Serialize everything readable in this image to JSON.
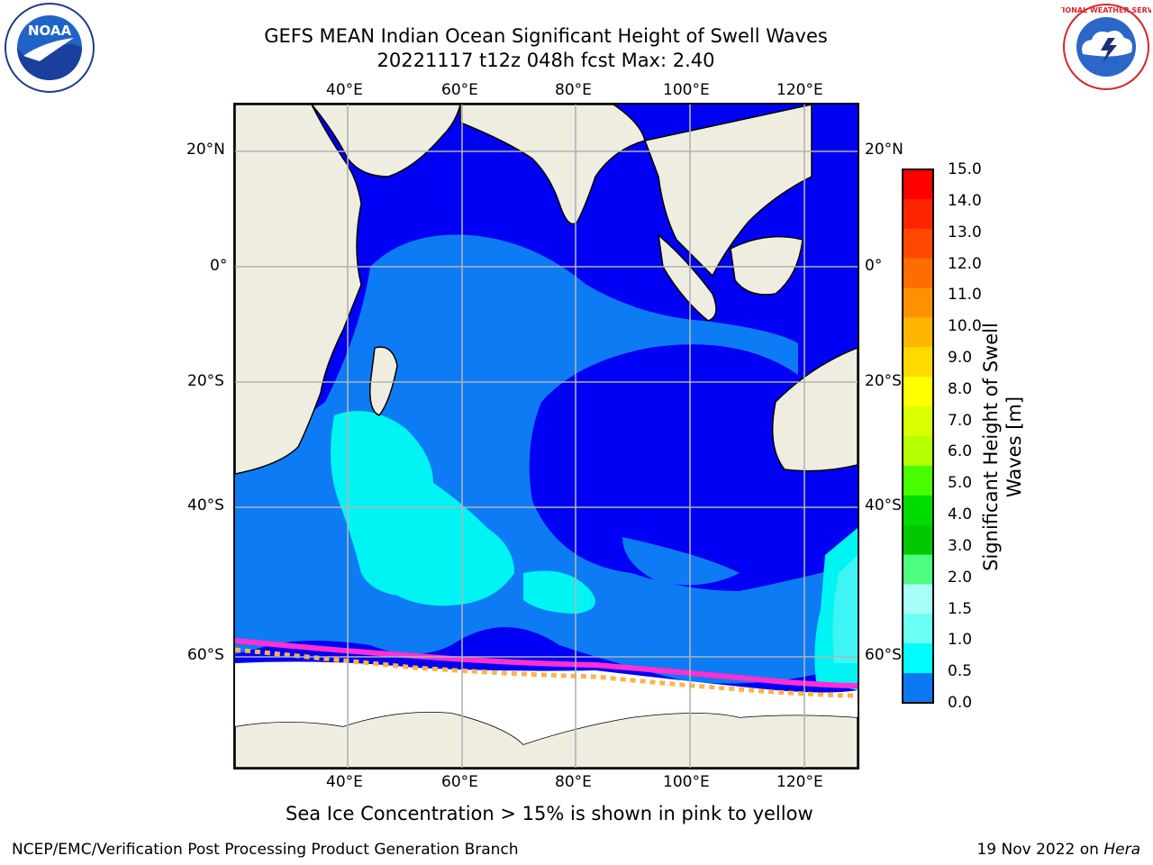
{
  "header": {
    "title_line1": "GEFS MEAN Indian Ocean Significant Height of Swell Waves",
    "title_line2": "20221117 t12z 048h fcst   Max: 2.40"
  },
  "logos": {
    "left_text": "NOAA",
    "left_ring": "NATIONAL OCEANIC AND ATMOSPHERIC ADMINISTRATION · U.S. DEPARTMENT OF COMMERCE",
    "right_ring": "NATIONAL WEATHER SERVICE"
  },
  "map": {
    "lon_labels": [
      "40°E",
      "60°E",
      "80°E",
      "100°E",
      "120°E"
    ],
    "lat_labels": [
      "20°N",
      "0°",
      "20°S",
      "40°S",
      "60°S"
    ],
    "colors": {
      "land": "#efede0",
      "ocean_low": "#0000f4",
      "ocean_mid": "#0d7cf4",
      "ocean_high": "#00f4f4",
      "ocean_peak": "#3ff4f4",
      "ice": "#ffffff",
      "grid": "#b3b3b3",
      "coast": "#000000"
    }
  },
  "colorbar": {
    "labels": [
      "15.0",
      "14.0",
      "13.0",
      "12.0",
      "11.0",
      "10.0",
      "9.0",
      "8.0",
      "7.0",
      "6.0",
      "5.0",
      "4.0",
      "3.0",
      "2.0",
      "1.5",
      "1.0",
      "0.5",
      "0.0"
    ],
    "colors": [
      "#ff0000",
      "#ff2400",
      "#ff4800",
      "#ff6d00",
      "#ff9100",
      "#ffb600",
      "#ffda00",
      "#ffff00",
      "#daff00",
      "#b6ff00",
      "#48ff00",
      "#00dc00",
      "#00c800",
      "#4cff7f",
      "#a8fff7",
      "#6bfff5",
      "#00fcfc",
      "#0b78f2",
      "#0000f5"
    ],
    "title_line1": "Significant Height of Swell",
    "title_line2": "Waves [m]"
  },
  "caption": "Sea Ice Concentration > 15% is shown in pink to yellow",
  "footer": {
    "left": "NCEP/EMC/Verification Post Processing Product Generation Branch",
    "right_date": "19 Nov 2022 on ",
    "right_host": "Hera"
  }
}
